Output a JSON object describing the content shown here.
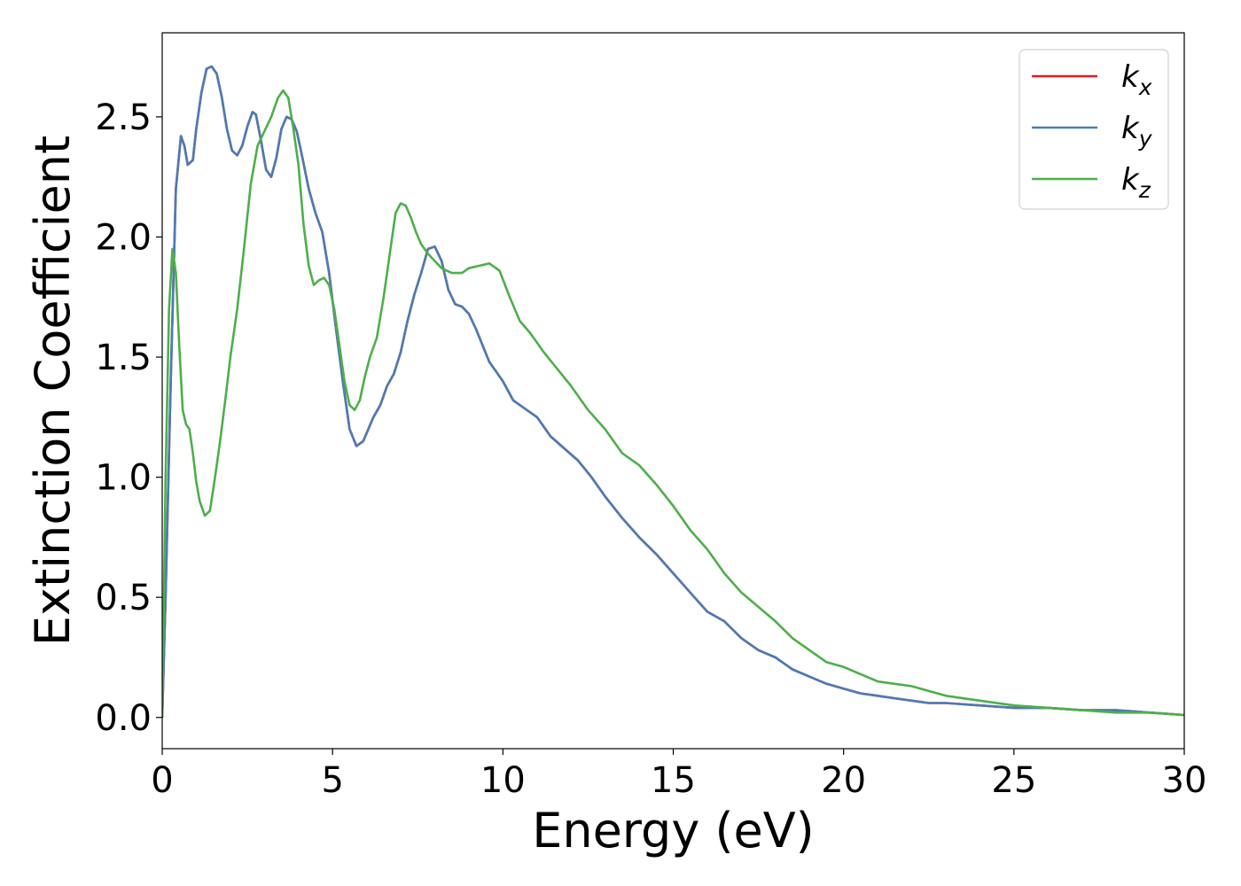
{
  "chart_data": {
    "type": "line",
    "xlabel": "Energy (eV)",
    "ylabel": "Extinction Coefficient",
    "xlim": [
      0,
      30
    ],
    "ylim": [
      -0.13,
      2.85
    ],
    "xticks": [
      0,
      5,
      10,
      15,
      20,
      25,
      30
    ],
    "xtick_labels": [
      "0",
      "5",
      "10",
      "15",
      "20",
      "25",
      "30"
    ],
    "yticks": [
      0.0,
      0.5,
      1.0,
      1.5,
      2.0,
      2.5
    ],
    "ytick_labels": [
      "0.0",
      "0.5",
      "1.0",
      "1.5",
      "2.0",
      "2.5"
    ],
    "grid": false,
    "legend_position": "top-right",
    "series": [
      {
        "name": "k",
        "subscript": "x",
        "color": "#e41a1c",
        "x": [
          0,
          0.1,
          0.25,
          0.4,
          0.55,
          0.65,
          0.75,
          0.9,
          1.0,
          1.15,
          1.3,
          1.45,
          1.6,
          1.75,
          1.9,
          2.05,
          2.2,
          2.35,
          2.5,
          2.65,
          2.75,
          2.9,
          3.05,
          3.2,
          3.35,
          3.5,
          3.65,
          3.8,
          3.95,
          4.1,
          4.3,
          4.5,
          4.7,
          4.9,
          5.1,
          5.3,
          5.5,
          5.7,
          5.9,
          6.05,
          6.2,
          6.4,
          6.6,
          6.8,
          7.0,
          7.2,
          7.4,
          7.6,
          7.8,
          8.0,
          8.2,
          8.4,
          8.6,
          8.8,
          9.0,
          9.2,
          9.4,
          9.6,
          9.8,
          10.0,
          10.3,
          10.6,
          11.0,
          11.4,
          11.8,
          12.2,
          12.6,
          13.0,
          13.5,
          14.0,
          14.5,
          15.0,
          15.5,
          16.0,
          16.5,
          17.0,
          17.5,
          18.0,
          18.5,
          19.0,
          19.5,
          20.0,
          20.5,
          21.0,
          21.5,
          22.0,
          22.5,
          23.0,
          24.0,
          25.0,
          26.0,
          27.0,
          28.0,
          29.0,
          30.0
        ],
        "values": [
          0.0,
          0.5,
          1.4,
          2.2,
          2.42,
          2.38,
          2.3,
          2.32,
          2.45,
          2.6,
          2.7,
          2.71,
          2.68,
          2.58,
          2.45,
          2.36,
          2.34,
          2.38,
          2.46,
          2.52,
          2.51,
          2.4,
          2.28,
          2.25,
          2.33,
          2.45,
          2.5,
          2.49,
          2.44,
          2.34,
          2.2,
          2.1,
          2.02,
          1.85,
          1.62,
          1.4,
          1.2,
          1.13,
          1.15,
          1.2,
          1.25,
          1.3,
          1.38,
          1.43,
          1.52,
          1.65,
          1.76,
          1.85,
          1.95,
          1.96,
          1.9,
          1.78,
          1.72,
          1.71,
          1.68,
          1.62,
          1.55,
          1.48,
          1.44,
          1.4,
          1.32,
          1.29,
          1.25,
          1.17,
          1.12,
          1.07,
          1.0,
          0.92,
          0.83,
          0.75,
          0.68,
          0.6,
          0.52,
          0.44,
          0.4,
          0.33,
          0.28,
          0.25,
          0.2,
          0.17,
          0.14,
          0.12,
          0.1,
          0.09,
          0.08,
          0.07,
          0.06,
          0.06,
          0.05,
          0.04,
          0.04,
          0.03,
          0.03,
          0.02,
          0.01
        ]
      },
      {
        "name": "k",
        "subscript": "y",
        "color": "#4a7cb5",
        "x": [
          0,
          0.1,
          0.25,
          0.4,
          0.55,
          0.65,
          0.75,
          0.9,
          1.0,
          1.15,
          1.3,
          1.45,
          1.6,
          1.75,
          1.9,
          2.05,
          2.2,
          2.35,
          2.5,
          2.65,
          2.75,
          2.9,
          3.05,
          3.2,
          3.35,
          3.5,
          3.65,
          3.8,
          3.95,
          4.1,
          4.3,
          4.5,
          4.7,
          4.9,
          5.1,
          5.3,
          5.5,
          5.7,
          5.9,
          6.05,
          6.2,
          6.4,
          6.6,
          6.8,
          7.0,
          7.2,
          7.4,
          7.6,
          7.8,
          8.0,
          8.2,
          8.4,
          8.6,
          8.8,
          9.0,
          9.2,
          9.4,
          9.6,
          9.8,
          10.0,
          10.3,
          10.6,
          11.0,
          11.4,
          11.8,
          12.2,
          12.6,
          13.0,
          13.5,
          14.0,
          14.5,
          15.0,
          15.5,
          16.0,
          16.5,
          17.0,
          17.5,
          18.0,
          18.5,
          19.0,
          19.5,
          20.0,
          20.5,
          21.0,
          21.5,
          22.0,
          22.5,
          23.0,
          24.0,
          25.0,
          26.0,
          27.0,
          28.0,
          29.0,
          30.0
        ],
        "values": [
          0.0,
          0.5,
          1.4,
          2.2,
          2.42,
          2.38,
          2.3,
          2.32,
          2.45,
          2.6,
          2.7,
          2.71,
          2.68,
          2.58,
          2.45,
          2.36,
          2.34,
          2.38,
          2.46,
          2.52,
          2.51,
          2.4,
          2.28,
          2.25,
          2.33,
          2.45,
          2.5,
          2.49,
          2.44,
          2.34,
          2.2,
          2.1,
          2.02,
          1.85,
          1.62,
          1.4,
          1.2,
          1.13,
          1.15,
          1.2,
          1.25,
          1.3,
          1.38,
          1.43,
          1.52,
          1.65,
          1.76,
          1.85,
          1.95,
          1.96,
          1.9,
          1.78,
          1.72,
          1.71,
          1.68,
          1.62,
          1.55,
          1.48,
          1.44,
          1.4,
          1.32,
          1.29,
          1.25,
          1.17,
          1.12,
          1.07,
          1.0,
          0.92,
          0.83,
          0.75,
          0.68,
          0.6,
          0.52,
          0.44,
          0.4,
          0.33,
          0.28,
          0.25,
          0.2,
          0.17,
          0.14,
          0.12,
          0.1,
          0.09,
          0.08,
          0.07,
          0.06,
          0.06,
          0.05,
          0.04,
          0.04,
          0.03,
          0.03,
          0.02,
          0.01
        ]
      },
      {
        "name": "k",
        "subscript": "z",
        "color": "#4daf4a",
        "x": [
          0,
          0.1,
          0.2,
          0.3,
          0.4,
          0.5,
          0.6,
          0.7,
          0.8,
          0.9,
          1.0,
          1.1,
          1.25,
          1.4,
          1.55,
          1.7,
          1.85,
          2.0,
          2.2,
          2.4,
          2.6,
          2.8,
          3.0,
          3.2,
          3.4,
          3.55,
          3.7,
          3.85,
          4.0,
          4.15,
          4.3,
          4.45,
          4.6,
          4.75,
          4.9,
          5.05,
          5.2,
          5.35,
          5.5,
          5.65,
          5.8,
          5.95,
          6.1,
          6.3,
          6.5,
          6.7,
          6.85,
          7.0,
          7.15,
          7.3,
          7.45,
          7.6,
          7.8,
          8.0,
          8.2,
          8.5,
          8.8,
          9.0,
          9.3,
          9.6,
          9.9,
          10.2,
          10.5,
          10.8,
          11.2,
          11.6,
          12.0,
          12.5,
          13.0,
          13.5,
          14.0,
          14.5,
          15.0,
          15.5,
          16.0,
          16.5,
          17.0,
          17.5,
          18.0,
          18.5,
          19.0,
          19.5,
          20.0,
          20.5,
          21.0,
          21.5,
          22.0,
          22.5,
          23.0,
          24.0,
          25.0,
          26.0,
          27.0,
          28.0,
          29.0,
          30.0
        ],
        "values": [
          0.0,
          1.0,
          1.7,
          1.95,
          1.85,
          1.55,
          1.28,
          1.22,
          1.2,
          1.1,
          0.98,
          0.9,
          0.84,
          0.86,
          1.0,
          1.15,
          1.32,
          1.5,
          1.7,
          1.95,
          2.22,
          2.38,
          2.44,
          2.5,
          2.58,
          2.61,
          2.58,
          2.45,
          2.3,
          2.05,
          1.88,
          1.8,
          1.82,
          1.83,
          1.8,
          1.7,
          1.55,
          1.4,
          1.3,
          1.28,
          1.32,
          1.42,
          1.5,
          1.58,
          1.75,
          1.95,
          2.1,
          2.14,
          2.13,
          2.08,
          2.02,
          1.97,
          1.93,
          1.9,
          1.87,
          1.85,
          1.85,
          1.87,
          1.88,
          1.89,
          1.86,
          1.75,
          1.65,
          1.6,
          1.52,
          1.45,
          1.38,
          1.28,
          1.2,
          1.1,
          1.05,
          0.97,
          0.88,
          0.78,
          0.7,
          0.6,
          0.52,
          0.46,
          0.4,
          0.33,
          0.28,
          0.23,
          0.21,
          0.18,
          0.15,
          0.14,
          0.13,
          0.11,
          0.09,
          0.07,
          0.05,
          0.04,
          0.03,
          0.02,
          0.02,
          0.01
        ]
      }
    ]
  }
}
